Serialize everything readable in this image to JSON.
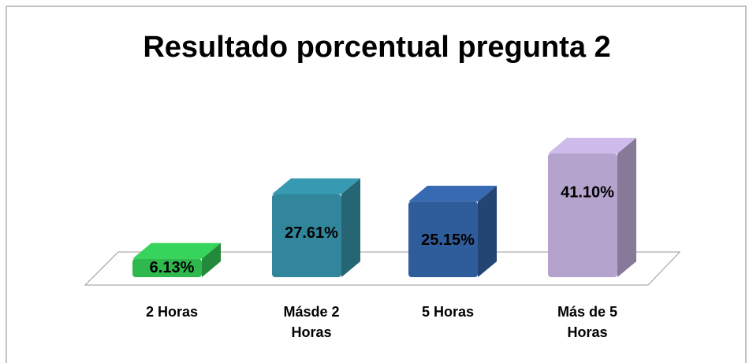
{
  "chart_data": {
    "type": "bar3d",
    "title": "Resultado porcentual pregunta 2",
    "categories": [
      "2 Horas",
      "Másde 2 Horas",
      "5 Horas",
      "Más de 5 Horas"
    ],
    "values": [
      6.13,
      27.61,
      25.15,
      41.1
    ],
    "value_labels": [
      "6.13%",
      "27.61%",
      "25.15%",
      "41.10%"
    ],
    "colors": [
      "#2fb84e",
      "#31869b",
      "#2f5c9b",
      "#b4a3cc"
    ]
  }
}
